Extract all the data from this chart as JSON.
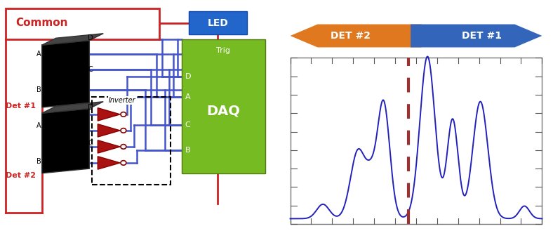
{
  "fig_width": 7.88,
  "fig_height": 3.29,
  "dpi": 100,
  "left_panel": {
    "common_label": "Common",
    "common_color": "#cc2222",
    "led_label": "LED",
    "led_bg": "#2266cc",
    "daq_label": "DAQ",
    "daq_bg": "#77bb22",
    "trig_label": "Trig",
    "det1_label": "Det #1",
    "det2_label": "Det #2",
    "inverter_label": "Inverter",
    "det_color": "#cc2222",
    "blue_line": "#4455cc",
    "tri_color": "#aa1111"
  },
  "right_panel": {
    "arrow_det2_label": "DET #2",
    "arrow_det1_label": "DET #1",
    "arrow_det2_color": "#e07820",
    "arrow_det1_color": "#3366bb",
    "plot_line_color": "#2222bb",
    "dashed_line_color": "#993333",
    "background": "#ffffff",
    "border_color": "#888888"
  }
}
